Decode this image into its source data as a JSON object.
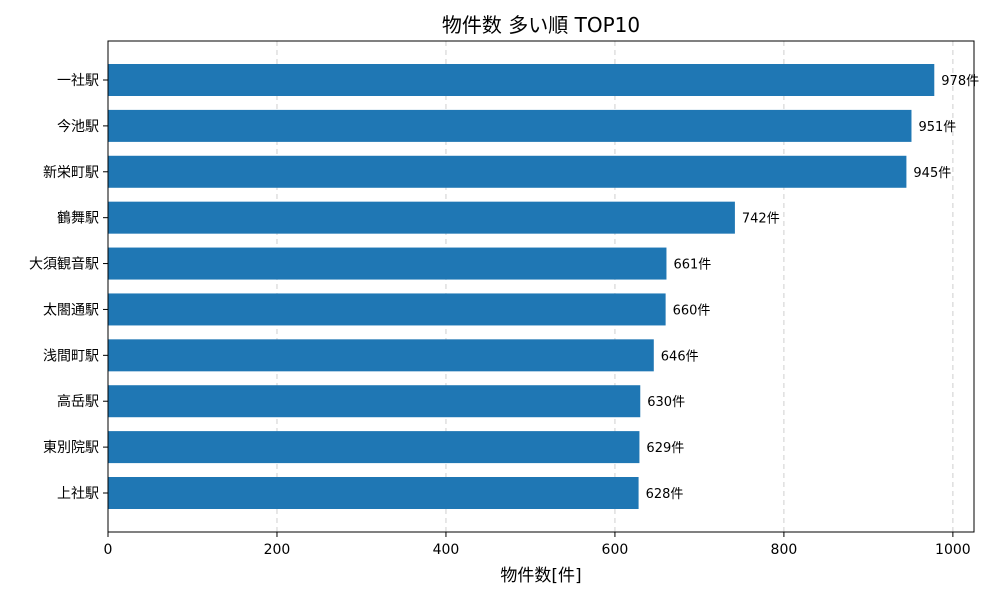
{
  "chart_data": {
    "type": "bar",
    "orientation": "horizontal",
    "title": "物件数 多い順 TOP10",
    "xlabel": "物件数[件]",
    "ylabel": "",
    "xlim": [
      0,
      1025
    ],
    "xticks": [
      0,
      200,
      400,
      600,
      800,
      1000
    ],
    "grid": "x",
    "bar_color": "#1f77b4",
    "value_suffix": "件",
    "categories": [
      "一社駅",
      "今池駅",
      "新栄町駅",
      "鶴舞駅",
      "大須観音駅",
      "太閤通駅",
      "浅間町駅",
      "高岳駅",
      "東別院駅",
      "上社駅"
    ],
    "values": [
      978,
      951,
      945,
      742,
      661,
      660,
      646,
      630,
      629,
      628
    ],
    "value_labels": [
      "978件",
      "951件",
      "945件",
      "742件",
      "661件",
      "660件",
      "646件",
      "630件",
      "629件",
      "628件"
    ]
  }
}
